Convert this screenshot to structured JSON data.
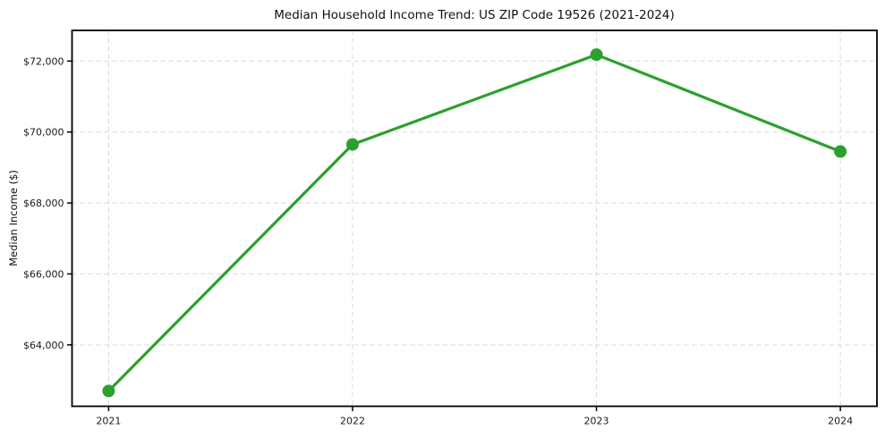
{
  "chart_data": {
    "type": "line",
    "title": "Median Household Income Trend: US ZIP Code 19526 (2021-2024)",
    "xlabel": "",
    "ylabel": "Median Income ($)",
    "x": [
      2021,
      2022,
      2023,
      2024
    ],
    "x_tick_labels": [
      "2021",
      "2022",
      "2023",
      "2024"
    ],
    "values": [
      62700,
      69650,
      72180,
      69450
    ],
    "y_ticks": [
      64000,
      66000,
      68000,
      70000,
      72000
    ],
    "y_tick_labels": [
      "$64,000",
      "$66,000",
      "$68,000",
      "$70,000",
      "$72,000"
    ],
    "xlim": [
      2020.85,
      2024.15
    ],
    "ylim": [
      62270,
      72865
    ],
    "grid": true,
    "grid_style": "dashed",
    "legend": "none",
    "line_color": "#2ca02c",
    "grid_color": "#d9d9d9",
    "spine_color": "#000000",
    "background_color": "#ffffff"
  }
}
